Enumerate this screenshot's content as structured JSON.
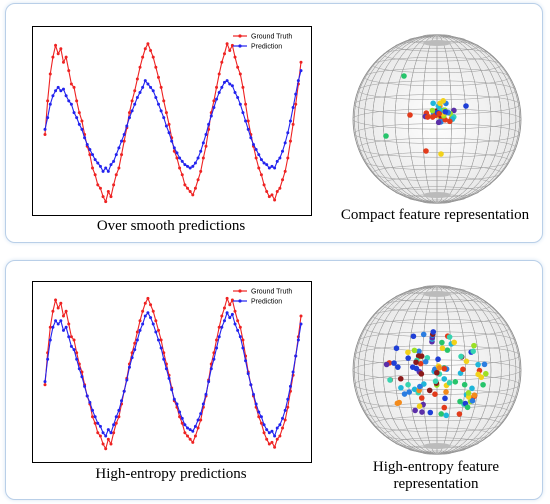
{
  "panels": [
    {
      "id": "top",
      "plot_caption": "Over smooth predictions",
      "sphere_caption": "Compact feature representation",
      "legend": [
        {
          "label": "Ground Truth",
          "color": "#ee2222"
        },
        {
          "label": "Prediction",
          "color": "#2222ee"
        }
      ],
      "sphere_style": "compact"
    },
    {
      "id": "bottom",
      "plot_caption": "High-entropy predictions",
      "sphere_caption": "High-entropy feature representation",
      "legend": [
        {
          "label": "Ground Truth",
          "color": "#ee2222"
        },
        {
          "label": "Prediction",
          "color": "#2222ee"
        }
      ],
      "sphere_style": "spread"
    }
  ],
  "chart_data": [
    {
      "type": "line",
      "series": [
        {
          "name": "Ground Truth",
          "color": "#ee2222",
          "values": [
            0.42,
            0.62,
            0.78,
            0.88,
            0.95,
            0.9,
            0.93,
            0.85,
            0.88,
            0.8,
            0.72,
            0.7,
            0.62,
            0.55,
            0.5,
            0.42,
            0.35,
            0.3,
            0.22,
            0.18,
            0.12,
            0.1,
            0.05,
            0.02,
            0.08,
            0.05,
            0.12,
            0.18,
            0.22,
            0.3,
            0.38,
            0.46,
            0.55,
            0.62,
            0.68,
            0.75,
            0.82,
            0.88,
            0.93,
            0.96,
            0.92,
            0.88,
            0.82,
            0.76,
            0.7,
            0.62,
            0.55,
            0.48,
            0.4,
            0.32,
            0.28,
            0.22,
            0.18,
            0.12,
            0.1,
            0.08,
            0.06,
            0.1,
            0.15,
            0.2,
            0.28,
            0.35,
            0.45,
            0.55,
            0.62,
            0.7,
            0.78,
            0.85,
            0.9,
            0.96,
            0.92,
            0.95,
            0.88,
            0.82,
            0.78,
            0.7,
            0.6,
            0.5,
            0.42,
            0.35,
            0.28,
            0.22,
            0.18,
            0.12,
            0.08,
            0.05,
            0.06,
            0.03,
            0.08,
            0.1,
            0.15,
            0.2,
            0.28,
            0.38,
            0.48,
            0.6,
            0.72,
            0.85
          ]
        },
        {
          "name": "Prediction",
          "color": "#2222ee",
          "values": [
            0.45,
            0.52,
            0.6,
            0.65,
            0.68,
            0.7,
            0.68,
            0.69,
            0.65,
            0.62,
            0.6,
            0.55,
            0.52,
            0.48,
            0.45,
            0.4,
            0.36,
            0.33,
            0.3,
            0.27,
            0.25,
            0.23,
            0.2,
            0.22,
            0.2,
            0.24,
            0.26,
            0.3,
            0.34,
            0.38,
            0.42,
            0.47,
            0.52,
            0.56,
            0.6,
            0.64,
            0.67,
            0.7,
            0.74,
            0.72,
            0.7,
            0.68,
            0.64,
            0.6,
            0.56,
            0.52,
            0.47,
            0.43,
            0.38,
            0.34,
            0.31,
            0.28,
            0.26,
            0.24,
            0.23,
            0.22,
            0.23,
            0.25,
            0.28,
            0.32,
            0.37,
            0.42,
            0.48,
            0.53,
            0.58,
            0.63,
            0.67,
            0.7,
            0.73,
            0.74,
            0.72,
            0.71,
            0.67,
            0.64,
            0.6,
            0.55,
            0.5,
            0.45,
            0.4,
            0.36,
            0.33,
            0.3,
            0.27,
            0.25,
            0.24,
            0.22,
            0.23,
            0.22,
            0.26,
            0.28,
            0.32,
            0.37,
            0.43,
            0.5,
            0.58,
            0.66,
            0.74,
            0.8
          ]
        }
      ]
    },
    {
      "type": "line",
      "series": [
        {
          "name": "Ground Truth",
          "color": "#ee2222",
          "values": [
            0.42,
            0.62,
            0.78,
            0.88,
            0.95,
            0.9,
            0.93,
            0.85,
            0.88,
            0.8,
            0.72,
            0.7,
            0.62,
            0.55,
            0.5,
            0.42,
            0.35,
            0.3,
            0.22,
            0.18,
            0.12,
            0.1,
            0.05,
            0.02,
            0.08,
            0.05,
            0.12,
            0.18,
            0.22,
            0.3,
            0.38,
            0.46,
            0.55,
            0.62,
            0.68,
            0.75,
            0.82,
            0.88,
            0.93,
            0.96,
            0.92,
            0.88,
            0.82,
            0.76,
            0.7,
            0.62,
            0.55,
            0.48,
            0.4,
            0.32,
            0.28,
            0.22,
            0.18,
            0.12,
            0.1,
            0.08,
            0.06,
            0.1,
            0.15,
            0.2,
            0.28,
            0.35,
            0.45,
            0.55,
            0.62,
            0.7,
            0.78,
            0.85,
            0.9,
            0.96,
            0.92,
            0.95,
            0.88,
            0.82,
            0.78,
            0.7,
            0.6,
            0.5,
            0.42,
            0.35,
            0.28,
            0.22,
            0.18,
            0.12,
            0.08,
            0.05,
            0.06,
            0.03,
            0.08,
            0.1,
            0.15,
            0.2,
            0.28,
            0.38,
            0.48,
            0.6,
            0.72,
            0.85
          ]
        },
        {
          "name": "Prediction",
          "color": "#2222ee",
          "values": [
            0.44,
            0.58,
            0.7,
            0.78,
            0.82,
            0.8,
            0.82,
            0.76,
            0.78,
            0.72,
            0.66,
            0.64,
            0.58,
            0.52,
            0.47,
            0.41,
            0.35,
            0.31,
            0.26,
            0.22,
            0.18,
            0.16,
            0.12,
            0.1,
            0.14,
            0.12,
            0.17,
            0.22,
            0.26,
            0.32,
            0.38,
            0.45,
            0.53,
            0.59,
            0.64,
            0.7,
            0.76,
            0.8,
            0.85,
            0.87,
            0.84,
            0.8,
            0.75,
            0.7,
            0.65,
            0.58,
            0.52,
            0.46,
            0.39,
            0.33,
            0.3,
            0.25,
            0.21,
            0.17,
            0.15,
            0.14,
            0.13,
            0.16,
            0.2,
            0.24,
            0.3,
            0.36,
            0.44,
            0.52,
            0.58,
            0.65,
            0.72,
            0.78,
            0.82,
            0.87,
            0.84,
            0.86,
            0.8,
            0.76,
            0.72,
            0.65,
            0.57,
            0.49,
            0.42,
            0.36,
            0.3,
            0.25,
            0.22,
            0.17,
            0.14,
            0.12,
            0.13,
            0.1,
            0.15,
            0.17,
            0.21,
            0.26,
            0.33,
            0.41,
            0.5,
            0.6,
            0.7,
            0.8
          ]
        }
      ]
    }
  ]
}
